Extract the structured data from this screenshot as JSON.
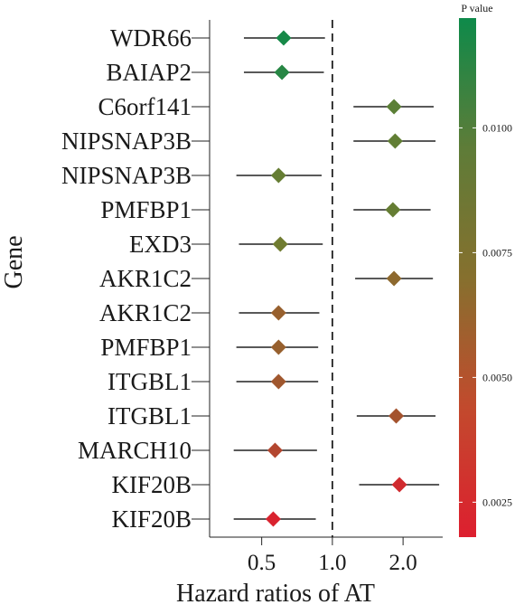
{
  "chart_data": {
    "type": "forest",
    "xlabel": "Hazard ratios of AT",
    "ylabel": "Gene",
    "x_ticks": [
      {
        "label": "0.5",
        "value": 0.5
      },
      {
        "label": "1.0",
        "value": 1.0
      },
      {
        "label": "2.0",
        "value": 2.0
      }
    ],
    "x_axis_scale": "log",
    "xlim": [
      0.3,
      2.95
    ],
    "reference_line": 1.0,
    "colorbar": {
      "title": "P value",
      "range": [
        0.0018,
        0.0122
      ],
      "ticks": [
        {
          "label": "0.0100",
          "value": 0.01
        },
        {
          "label": "0.0075",
          "value": 0.0075
        },
        {
          "label": "0.0050",
          "value": 0.005
        },
        {
          "label": "0.0025",
          "value": 0.0025
        }
      ],
      "color_low": "#dd1f2f",
      "color_mid": "#7a7a2e",
      "color_high": "#0e8a4a"
    },
    "rows": [
      {
        "gene": "WDR66",
        "hr": 0.62,
        "lower": 0.42,
        "upper": 0.93,
        "p": 0.0118
      },
      {
        "gene": "BAIAP2",
        "hr": 0.61,
        "lower": 0.42,
        "upper": 0.92,
        "p": 0.011
      },
      {
        "gene": "C6orf141",
        "hr": 1.83,
        "lower": 1.23,
        "upper": 2.7,
        "p": 0.0085
      },
      {
        "gene": "NIPSNAP3B",
        "hr": 1.85,
        "lower": 1.23,
        "upper": 2.75,
        "p": 0.0082
      },
      {
        "gene": "NIPSNAP3B",
        "hr": 0.59,
        "lower": 0.39,
        "upper": 0.9,
        "p": 0.008
      },
      {
        "gene": "PMFBP1",
        "hr": 1.81,
        "lower": 1.23,
        "upper": 2.62,
        "p": 0.008
      },
      {
        "gene": "EXD3",
        "hr": 0.6,
        "lower": 0.4,
        "upper": 0.91,
        "p": 0.0075
      },
      {
        "gene": "AKR1C2",
        "hr": 1.83,
        "lower": 1.25,
        "upper": 2.68,
        "p": 0.006
      },
      {
        "gene": "AKR1C2",
        "hr": 0.59,
        "lower": 0.4,
        "upper": 0.88,
        "p": 0.0055
      },
      {
        "gene": "PMFBP1",
        "hr": 0.59,
        "lower": 0.39,
        "upper": 0.87,
        "p": 0.0055
      },
      {
        "gene": "ITGBL1",
        "hr": 0.59,
        "lower": 0.39,
        "upper": 0.87,
        "p": 0.005
      },
      {
        "gene": "ITGBL1",
        "hr": 1.87,
        "lower": 1.27,
        "upper": 2.75,
        "p": 0.0048
      },
      {
        "gene": "MARCH10",
        "hr": 0.57,
        "lower": 0.38,
        "upper": 0.86,
        "p": 0.004
      },
      {
        "gene": "KIF20B",
        "hr": 1.93,
        "lower": 1.3,
        "upper": 2.85,
        "p": 0.0025
      },
      {
        "gene": "KIF20B",
        "hr": 0.56,
        "lower": 0.38,
        "upper": 0.85,
        "p": 0.002
      }
    ]
  }
}
